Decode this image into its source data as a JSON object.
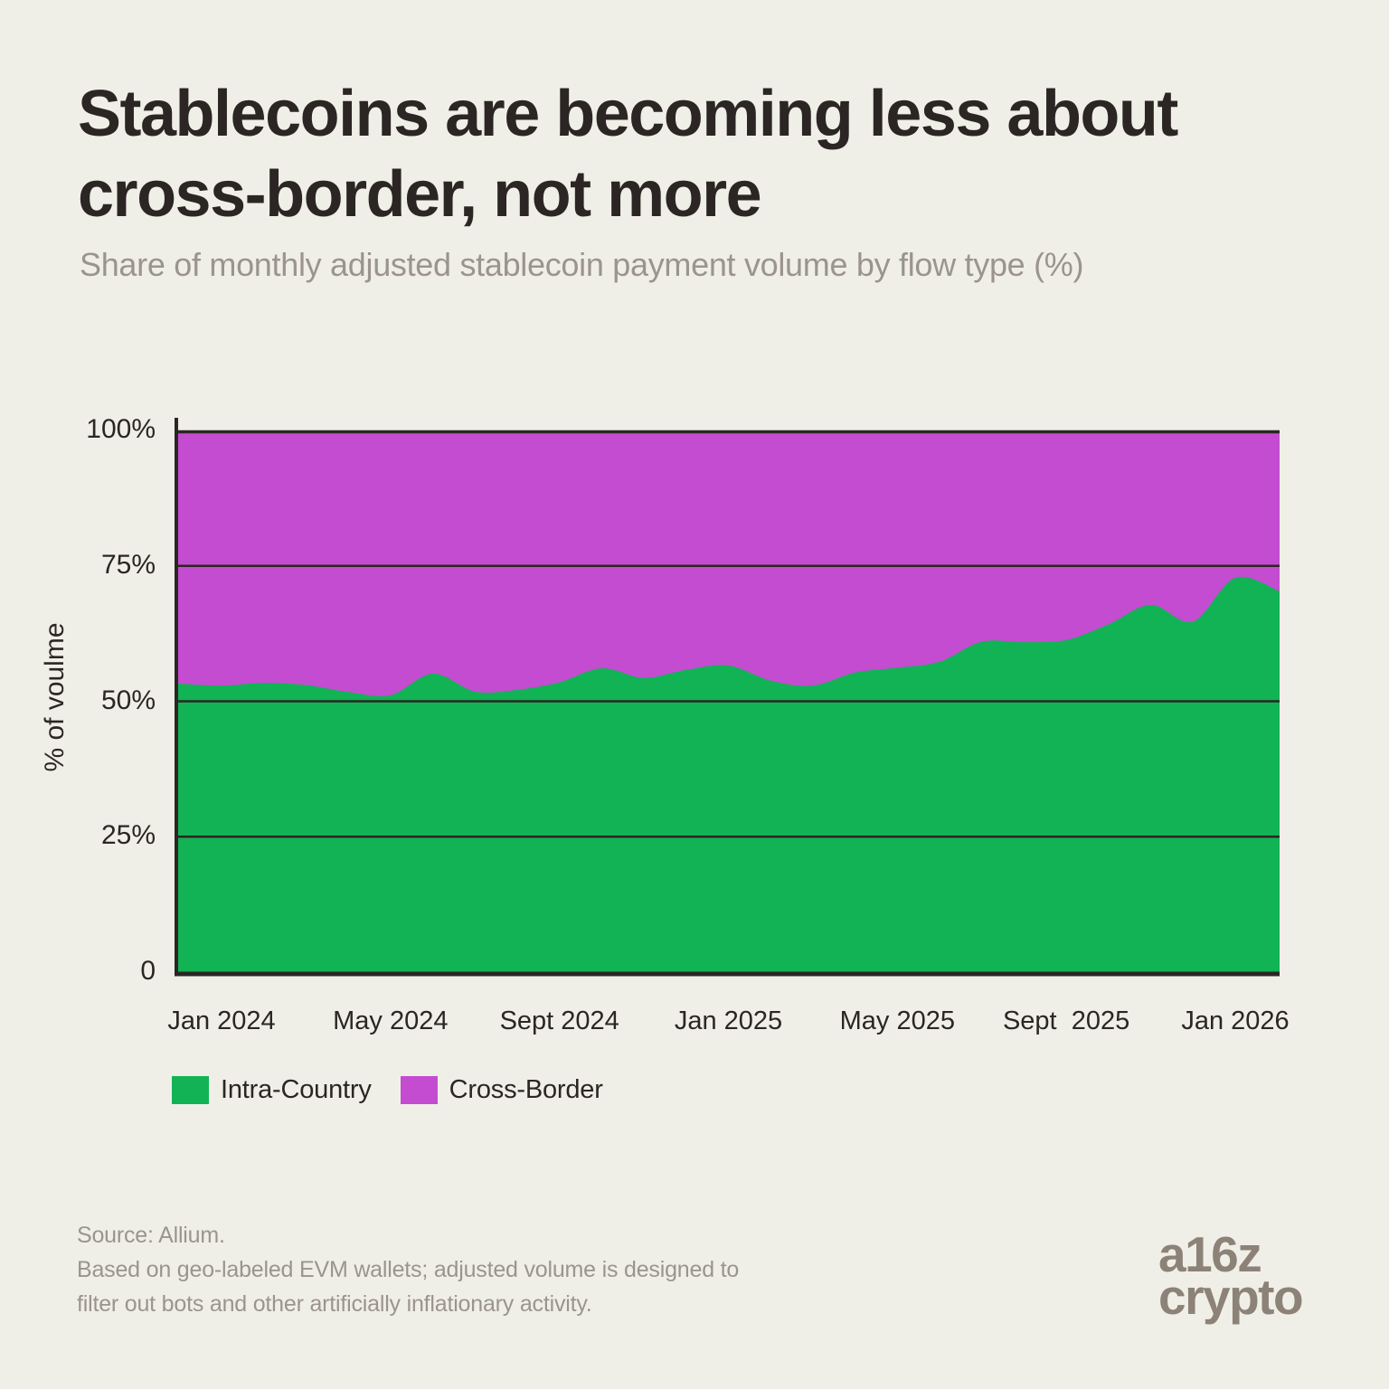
{
  "header": {
    "title_lines": [
      "Stablecoins are becoming less about",
      "cross-border, not more"
    ],
    "subtitle": "Share of monthly adjusted stablecoin payment volume by flow type (%)"
  },
  "chart_data": {
    "type": "area",
    "stacked": true,
    "normalized_to_100_percent": true,
    "title": "Stablecoins are becoming less about cross-border, not more",
    "subtitle": "Share of monthly adjusted stablecoin payment volume by flow type (%)",
    "xlabel": "",
    "ylabel": "% of voulme",
    "ylim": [
      0,
      100
    ],
    "grid": "horizontal",
    "legend_position": "bottom-left",
    "y_tick_labels": [
      "100%",
      "75%",
      "50%",
      "25%",
      "0"
    ],
    "y_tick_values": [
      100,
      75,
      50,
      25,
      0
    ],
    "x_tick_labels": [
      "Jan 2024",
      "May 2024",
      "Sept 2024",
      "Jan 2025",
      "May 2025",
      "Sept  2025",
      "Jan 2026"
    ],
    "x_tick_months": [
      0,
      4,
      8,
      12,
      16,
      20,
      24
    ],
    "x_unit": "months since Jan 2024 (plot spans mid-Dec 2023 to early Feb 2026)",
    "x_range_months": [
      -1.11,
      25.05
    ],
    "series": [
      {
        "name": "Intra-Country",
        "color": "#11B355",
        "points": [
          [
            -1.11,
            53.3
          ],
          [
            0,
            52.9
          ],
          [
            1,
            53.4
          ],
          [
            2,
            53.0
          ],
          [
            3,
            51.7
          ],
          [
            4,
            51.1
          ],
          [
            5,
            55.1
          ],
          [
            6,
            51.8
          ],
          [
            7,
            52.1
          ],
          [
            8,
            53.5
          ],
          [
            9,
            56.1
          ],
          [
            10,
            54.3
          ],
          [
            11,
            55.8
          ],
          [
            12,
            56.6
          ],
          [
            13,
            53.8
          ],
          [
            14,
            52.9
          ],
          [
            15,
            55.3
          ],
          [
            16,
            56.2
          ],
          [
            17,
            57.3
          ],
          [
            18,
            61.0
          ],
          [
            19,
            60.9
          ],
          [
            20,
            61.3
          ],
          [
            21,
            64.2
          ],
          [
            22,
            67.8
          ],
          [
            23,
            64.7
          ],
          [
            24,
            72.8
          ],
          [
            25.05,
            70.3
          ]
        ]
      },
      {
        "name": "Cross-Border",
        "color": "#C44CD0",
        "definition": "remainder of stack: 100 minus Intra-Country share"
      }
    ]
  },
  "legend": {
    "items": [
      {
        "label": "Intra-Country",
        "color": "#11B355"
      },
      {
        "label": "Cross-Border",
        "color": "#C44CD0"
      }
    ]
  },
  "footer": {
    "source_lines": [
      "Source: Allium.",
      "Based on geo-labeled EVM wallets; adjusted volume is designed to",
      "filter out bots and other artificially inflationary activity."
    ],
    "logo_lines": [
      "a16z",
      "crypto"
    ]
  },
  "colors": {
    "background": "#F0EFE7",
    "ink": "#2B2623",
    "muted": "#9B948E",
    "logo_gray": "#8C8278",
    "intra_country_green": "#11B355",
    "cross_border_purple": "#C44CD0",
    "gridline": "#2B2623"
  }
}
